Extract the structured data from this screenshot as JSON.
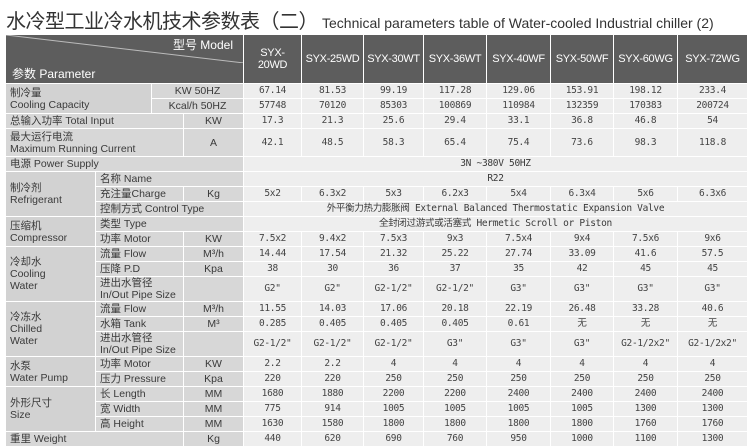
{
  "title": {
    "cn": "水冷型工业冷水机技术参数表（二）",
    "en": "Technical parameters table of Water-cooled Industrial chiller (2)"
  },
  "header": {
    "param": "参数 Parameter",
    "model": "型号 Model",
    "models": [
      "SYX-20WD",
      "SYX-25WD",
      "SYX-30WT",
      "SYX-36WT",
      "SYX-40WF",
      "SYX-50WF",
      "SYX-60WG",
      "SYX-72WG"
    ]
  },
  "sections": [
    {
      "label": "制冷量\nCooling Capacity",
      "rows": [
        {
          "unit": "KW 50HZ",
          "values": [
            "67.14",
            "81.53",
            "99.19",
            "117.28",
            "129.06",
            "153.91",
            "198.12",
            "233.4"
          ]
        },
        {
          "unit": "Kcal/h 50HZ",
          "values": [
            "57748",
            "70120",
            "85303",
            "100869",
            "110984",
            "132359",
            "170383",
            "200724"
          ]
        }
      ]
    },
    {
      "label": "总输入功率 Total Input",
      "rows": [
        {
          "unit": "KW",
          "values": [
            "17.3",
            "21.3",
            "25.6",
            "29.4",
            "33.1",
            "36.8",
            "46.8",
            "54"
          ]
        }
      ]
    },
    {
      "label": "最大运行电流\nMaximum Running Current",
      "tall": true,
      "rows": [
        {
          "unit": "A",
          "values": [
            "42.1",
            "48.5",
            "58.3",
            "65.4",
            "75.4",
            "73.6",
            "98.3",
            "118.8"
          ]
        }
      ]
    },
    {
      "label": "电源 Power Supply",
      "rows": [
        {
          "value": "3N ~380V 50HZ"
        }
      ]
    },
    {
      "label": "制冷剂\nRefrigerant",
      "rows": [
        {
          "name": "名称 Name",
          "value": "R22"
        },
        {
          "name": "充注量Charge",
          "unit": "Kg",
          "values": [
            "5x2",
            "6.3x2",
            "5x3",
            "6.2x3",
            "5x4",
            "6.3x4",
            "5x6",
            "6.3x6"
          ]
        },
        {
          "name": "控制方式 Control Type",
          "value": "外平衡力热力膨胀阀 External Balanced Thermostatic Expansion Valve"
        }
      ]
    },
    {
      "label": "压缩机\nCompressor",
      "rows": [
        {
          "name": "类型 Type",
          "value": "全封闭过游式或活塞式 Hermetic Scroll or Piston"
        },
        {
          "name": "功率 Motor",
          "unit": "KW",
          "values": [
            "7.5x2",
            "9.4x2",
            "7.5x3",
            "9x3",
            "7.5x4",
            "9x4",
            "7.5x6",
            "9x6"
          ]
        }
      ]
    },
    {
      "label": "冷却水\nCooling\nWater",
      "rows": [
        {
          "name": "流量 Flow",
          "unit": "M³/h",
          "values": [
            "14.44",
            "17.54",
            "21.32",
            "25.22",
            "27.74",
            "33.09",
            "41.6",
            "57.5"
          ]
        },
        {
          "name": "压降 P.D",
          "unit": "Kpa",
          "values": [
            "38",
            "30",
            "36",
            "37",
            "35",
            "42",
            "45",
            "45"
          ]
        },
        {
          "name": "进出水管径 In/Out Pipe Size",
          "unit": "",
          "values": [
            "G2\"",
            "G2\"",
            "G2-1/2\"",
            "G2-1/2\"",
            "G3\"",
            "G3\"",
            "G3\"",
            "G3\""
          ]
        }
      ]
    },
    {
      "label": "冷冻水\nChilled\nWater",
      "rows": [
        {
          "name": "流量 Flow",
          "unit": "M³/h",
          "values": [
            "11.55",
            "14.03",
            "17.06",
            "20.18",
            "22.19",
            "26.48",
            "33.28",
            "40.6"
          ]
        },
        {
          "name": "水箱 Tank",
          "unit": "M³",
          "values": [
            "0.285",
            "0.405",
            "0.405",
            "0.405",
            "0.61",
            "无",
            "无",
            "无"
          ]
        },
        {
          "name": "进出水管径 In/Out Pipe Size",
          "unit": "",
          "values": [
            "G2-1/2\"",
            "G2-1/2\"",
            "G2-1/2\"",
            "G3\"",
            "G3\"",
            "G3\"",
            "G2-1/2x2\"",
            "G2-1/2x2\""
          ]
        }
      ]
    },
    {
      "label": "水泵\nWater Pump",
      "rows": [
        {
          "name": "功率 Motor",
          "unit": "KW",
          "values": [
            "2.2",
            "2.2",
            "4",
            "4",
            "4",
            "4",
            "4",
            "4"
          ]
        },
        {
          "name": "压力 Pressure",
          "unit": "Kpa",
          "values": [
            "220",
            "220",
            "250",
            "250",
            "250",
            "250",
            "250",
            "250"
          ]
        }
      ]
    },
    {
      "label": "外形尺寸\nSize",
      "rows": [
        {
          "name": "长 Length",
          "unit": "MM",
          "values": [
            "1680",
            "1880",
            "2200",
            "2200",
            "2400",
            "2400",
            "2400",
            "2400"
          ]
        },
        {
          "name": "宽 Width",
          "unit": "MM",
          "values": [
            "775",
            "914",
            "1005",
            "1005",
            "1005",
            "1005",
            "1300",
            "1300"
          ]
        },
        {
          "name": "高 Height",
          "unit": "MM",
          "values": [
            "1630",
            "1580",
            "1800",
            "1800",
            "1800",
            "1800",
            "1760",
            "1760"
          ]
        }
      ]
    },
    {
      "label": "重里 Weight",
      "rows": [
        {
          "unit": "Kg",
          "values": [
            "440",
            "620",
            "690",
            "760",
            "950",
            "1000",
            "1100",
            "1300"
          ]
        }
      ]
    }
  ]
}
